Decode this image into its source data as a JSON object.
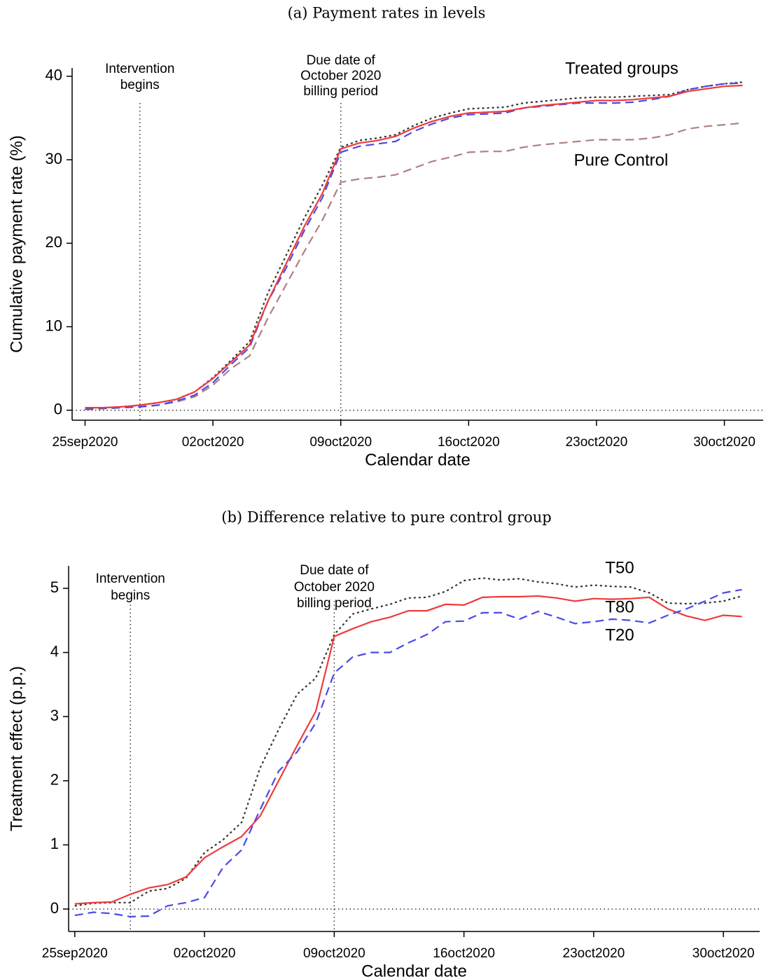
{
  "chart_data": [
    {
      "type": "line",
      "title": "(a) Payment rates in levels",
      "x_label": "Calendar date",
      "y_label": "Cumulative payment rate (%)",
      "x": [
        "2020-09-25",
        "2020-09-26",
        "2020-09-27",
        "2020-09-28",
        "2020-09-29",
        "2020-09-30",
        "2020-10-01",
        "2020-10-02",
        "2020-10-03",
        "2020-10-04",
        "2020-10-05",
        "2020-10-06",
        "2020-10-07",
        "2020-10-08",
        "2020-10-09",
        "2020-10-10",
        "2020-10-11",
        "2020-10-12",
        "2020-10-13",
        "2020-10-14",
        "2020-10-15",
        "2020-10-16",
        "2020-10-17",
        "2020-10-18",
        "2020-10-19",
        "2020-10-20",
        "2020-10-21",
        "2020-10-22",
        "2020-10-23",
        "2020-10-24",
        "2020-10-25",
        "2020-10-26",
        "2020-10-27",
        "2020-10-28",
        "2020-10-29",
        "2020-10-30",
        "2020-10-31"
      ],
      "series": [
        {
          "color": "#b08080",
          "dash": "dash",
          "values": [
            0.1,
            0.2,
            0.3,
            0.4,
            0.6,
            1,
            1.6,
            3,
            5,
            6.5,
            11,
            15,
            19,
            22.8,
            27.3,
            27.7,
            27.9,
            28.2,
            29,
            29.8,
            30.3,
            30.9,
            31,
            31,
            31.5,
            31.8,
            32,
            32.2,
            32.4,
            32.4,
            32.4,
            32.6,
            33,
            33.7,
            34,
            34.2,
            34.4
          ]
        },
        {
          "color": "#333333",
          "dash": "dot",
          "values": [
            0.3,
            0.3,
            0.4,
            0.6,
            0.9,
            1.3,
            2.2,
            3.9,
            6,
            8.2,
            14,
            18.5,
            23,
            27,
            31.5,
            32.3,
            32.6,
            33,
            34.1,
            35,
            35.6,
            36.1,
            36.2,
            36.3,
            36.8,
            37,
            37.2,
            37.4,
            37.5,
            37.5,
            37.6,
            37.7,
            37.8,
            38.4,
            38.8,
            39.1,
            39.3
          ]
        },
        {
          "color": "#4a4ae8",
          "dash": "dash",
          "values": [
            0.1,
            0.2,
            0.3,
            0.4,
            0.6,
            1.1,
            1.8,
            3.3,
            5.5,
            7.5,
            13,
            17,
            21.5,
            25.5,
            30.9,
            31.6,
            31.9,
            32.2,
            33.4,
            34.3,
            35,
            35.4,
            35.5,
            35.6,
            36.2,
            36.4,
            36.6,
            36.8,
            36.8,
            36.8,
            36.9,
            37.2,
            37.6,
            38.4,
            38.8,
            39.1,
            39.2
          ]
        },
        {
          "color": "#ee3b3b",
          "dash": "solid",
          "values": [
            0.3,
            0.3,
            0.4,
            0.6,
            0.9,
            1.3,
            2.2,
            3.8,
            5.8,
            7.8,
            13,
            17.5,
            22,
            26,
            31.3,
            32,
            32.3,
            32.8,
            33.8,
            34.6,
            35.2,
            35.6,
            35.7,
            35.8,
            36.2,
            36.5,
            36.7,
            36.9,
            37.1,
            37.1,
            37.2,
            37.4,
            37.6,
            38.2,
            38.5,
            38.8,
            38.9
          ]
        }
      ],
      "annotations": [
        {
          "text": "Treated groups",
          "color": "#2f5f8a"
        },
        {
          "text": "Pure Control",
          "color": "#a05a5a"
        }
      ],
      "vlines": [
        {
          "x": "2020-09-28",
          "label": [
            "Intervention",
            "begins"
          ]
        },
        {
          "x": "2020-10-09",
          "label": [
            "Due date of",
            "October 2020",
            "billing period"
          ]
        }
      ],
      "xlim": [
        "2020-09-24T07:00",
        "2020-11-01T03:00"
      ],
      "xticks": [
        {
          "value": "2020-09-25",
          "label": "25sep2020"
        },
        {
          "value": "2020-10-02",
          "label": "02oct2020"
        },
        {
          "value": "2020-10-09",
          "label": "09oct2020"
        },
        {
          "value": "2020-10-16",
          "label": "16oct2020"
        },
        {
          "value": "2020-10-23",
          "label": "23oct2020"
        },
        {
          "value": "2020-10-30",
          "label": "30oct2020"
        }
      ],
      "ylim": [
        -1.2,
        41
      ],
      "yticks": [
        0,
        10,
        20,
        30,
        40
      ],
      "zero_line": true
    },
    {
      "type": "line",
      "title": "(b) Difference relative to pure control group",
      "x_label": "Calendar date",
      "y_label": "Treatment effect (p.p.)",
      "x": [
        "2020-09-25",
        "2020-09-26",
        "2020-09-27",
        "2020-09-28",
        "2020-09-29",
        "2020-09-30",
        "2020-10-01",
        "2020-10-02",
        "2020-10-03",
        "2020-10-04",
        "2020-10-05",
        "2020-10-06",
        "2020-10-07",
        "2020-10-08",
        "2020-10-09",
        "2020-10-10",
        "2020-10-11",
        "2020-10-12",
        "2020-10-13",
        "2020-10-14",
        "2020-10-15",
        "2020-10-16",
        "2020-10-17",
        "2020-10-18",
        "2020-10-19",
        "2020-10-20",
        "2020-10-21",
        "2020-10-22",
        "2020-10-23",
        "2020-10-24",
        "2020-10-25",
        "2020-10-26",
        "2020-10-27",
        "2020-10-28",
        "2020-10-29",
        "2020-10-30",
        "2020-10-31"
      ],
      "series": [
        {
          "name": "T50",
          "color": "#333333",
          "dash": "dot",
          "values": [
            0.05,
            0.09,
            0.1,
            0.1,
            0.28,
            0.32,
            0.48,
            0.88,
            1.08,
            1.35,
            2.2,
            2.8,
            3.35,
            3.6,
            4.28,
            4.6,
            4.68,
            4.75,
            4.85,
            4.86,
            4.95,
            5.12,
            5.16,
            5.13,
            5.15,
            5.1,
            5.07,
            5.02,
            5.05,
            5.03,
            5.02,
            4.93,
            4.77,
            4.76,
            4.77,
            4.8,
            4.88
          ]
        },
        {
          "name": "T80",
          "color": "#ee3b3b",
          "dash": "solid",
          "values": [
            0.08,
            0.1,
            0.11,
            0.23,
            0.33,
            0.38,
            0.5,
            0.8,
            0.97,
            1.13,
            1.45,
            2,
            2.55,
            3.08,
            4.25,
            4.37,
            4.48,
            4.55,
            4.65,
            4.65,
            4.75,
            4.74,
            4.86,
            4.87,
            4.87,
            4.88,
            4.85,
            4.8,
            4.84,
            4.83,
            4.84,
            4.86,
            4.68,
            4.57,
            4.5,
            4.58,
            4.56
          ]
        },
        {
          "name": "T20",
          "color": "#4a4ae8",
          "dash": "dash",
          "values": [
            -0.1,
            -0.05,
            -0.07,
            -0.12,
            -0.11,
            0.05,
            0.1,
            0.18,
            0.65,
            0.92,
            1.55,
            2.15,
            2.45,
            2.9,
            3.68,
            3.93,
            4,
            4,
            4.15,
            4.28,
            4.48,
            4.49,
            4.62,
            4.62,
            4.52,
            4.64,
            4.55,
            4.45,
            4.48,
            4.52,
            4.5,
            4.46,
            4.58,
            4.68,
            4.8,
            4.93,
            4.98
          ]
        }
      ],
      "vlines": [
        {
          "x": "2020-09-28",
          "label": [
            "Intervention",
            "begins"
          ]
        },
        {
          "x": "2020-10-09",
          "label": [
            "Due date of",
            "October 2020",
            "billing period"
          ]
        }
      ],
      "xlim": [
        "2020-09-24T16:00",
        "2020-10-31T23:00"
      ],
      "xticks": [
        {
          "value": "2020-09-25",
          "label": "25sep2020"
        },
        {
          "value": "2020-10-02",
          "label": "02oct2020"
        },
        {
          "value": "2020-10-09",
          "label": "09oct2020"
        },
        {
          "value": "2020-10-16",
          "label": "16oct2020"
        },
        {
          "value": "2020-10-23",
          "label": "23oct2020"
        },
        {
          "value": "2020-10-30",
          "label": "30oct2020"
        }
      ],
      "ylim": [
        -0.35,
        5.35
      ],
      "yticks": [
        0,
        1,
        2,
        3,
        4,
        5
      ],
      "zero_line": true
    }
  ]
}
